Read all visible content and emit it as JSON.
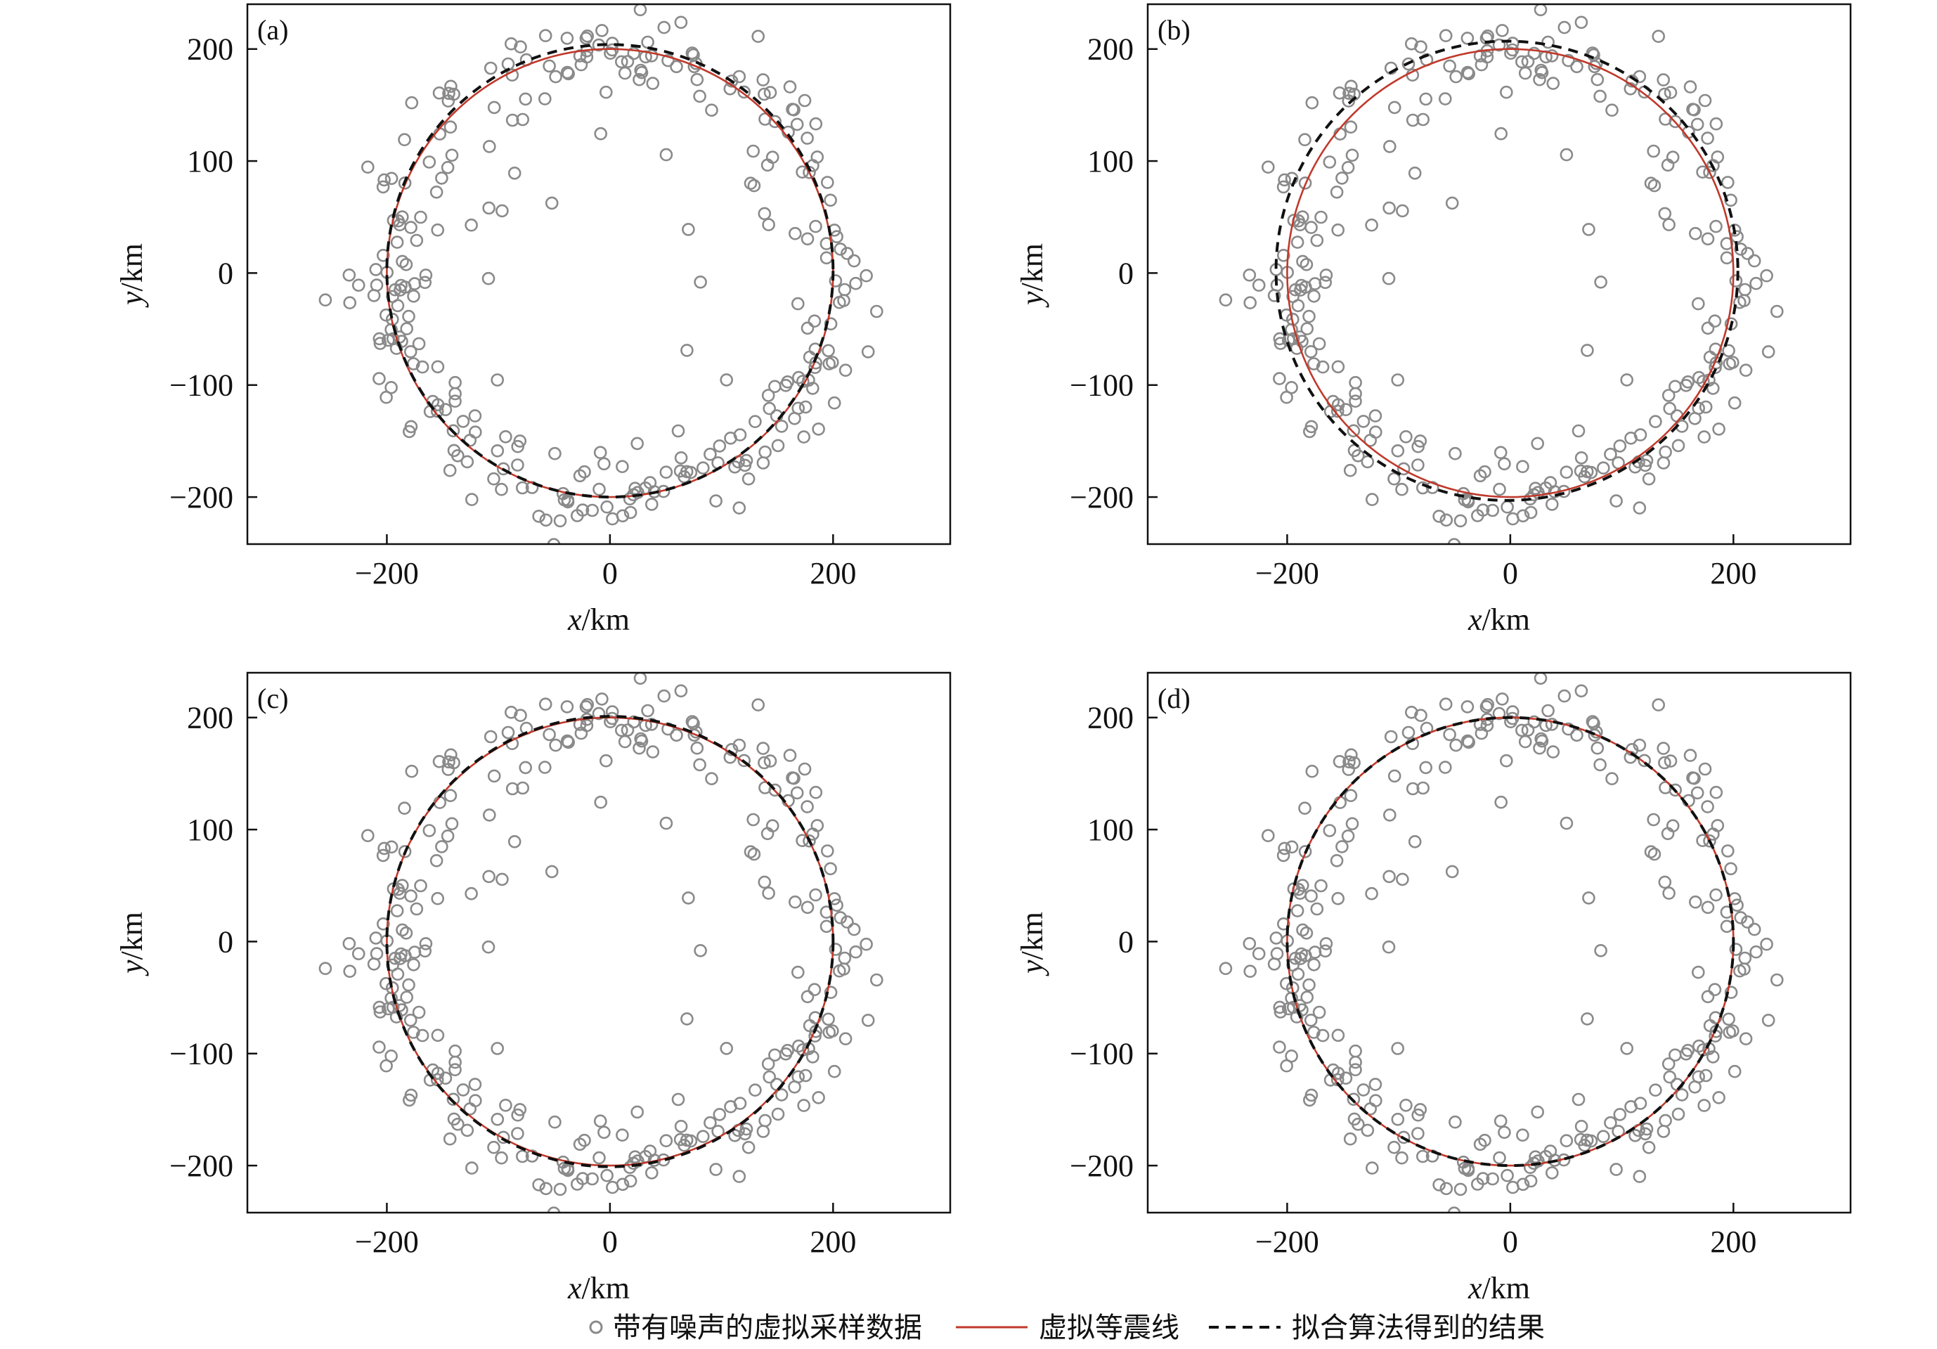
{
  "colors": {
    "samples": "#8a8a8a",
    "true_curve": "#c0392b",
    "fit_curve": "#111111",
    "axes": "#111111"
  },
  "legend": {
    "samples": "带有噪声的虚拟采样数据",
    "true_curve": "虚拟等震线",
    "fit_curve": "拟合算法得到的结果"
  },
  "chart_data": [
    {
      "panel": "(a)",
      "type": "scatter",
      "xlabel": "x/km",
      "ylabel": "y/km",
      "xlim": [
        -325,
        305
      ],
      "ylim": [
        -242,
        240
      ],
      "xticks": [
        -200,
        0,
        200
      ],
      "yticks": [
        -200,
        -100,
        0,
        100,
        200
      ],
      "true_radius": 200,
      "fit": {
        "cx": 0,
        "cy": 2,
        "a": 200,
        "b": 202
      },
      "series": [
        {
          "name": "带有噪声的虚拟采样数据",
          "kind": "scatter"
        },
        {
          "name": "虚拟等震线",
          "kind": "line"
        },
        {
          "name": "拟合算法得到的结果",
          "kind": "dashed-line"
        }
      ]
    },
    {
      "panel": "(b)",
      "type": "scatter",
      "xlabel": "x/km",
      "ylabel": "y/km",
      "xlim": [
        -325,
        305
      ],
      "ylim": [
        -242,
        240
      ],
      "xticks": [
        -200,
        0,
        200
      ],
      "yticks": [
        -200,
        -100,
        0,
        100,
        200
      ],
      "true_radius": 200,
      "fit": {
        "cx": -3,
        "cy": 2,
        "a": 207,
        "b": 205
      },
      "series": [
        {
          "name": "带有噪声的虚拟采样数据",
          "kind": "scatter"
        },
        {
          "name": "虚拟等震线",
          "kind": "line"
        },
        {
          "name": "拟合算法得到的结果",
          "kind": "dashed-line"
        }
      ]
    },
    {
      "panel": "(c)",
      "type": "scatter",
      "xlabel": "x/km",
      "ylabel": "y/km",
      "xlim": [
        -325,
        305
      ],
      "ylim": [
        -242,
        240
      ],
      "xticks": [
        -200,
        0,
        200
      ],
      "yticks": [
        -200,
        -100,
        0,
        100,
        200
      ],
      "true_radius": 200,
      "fit": {
        "cx": 0,
        "cy": 0,
        "a": 200,
        "b": 201
      },
      "series": [
        {
          "name": "带有噪声的虚拟采样数据",
          "kind": "scatter"
        },
        {
          "name": "虚拟等震线",
          "kind": "line"
        },
        {
          "name": "拟合算法得到的结果",
          "kind": "dashed-line"
        }
      ]
    },
    {
      "panel": "(d)",
      "type": "scatter",
      "xlabel": "x/km",
      "ylabel": "y/km",
      "xlim": [
        -325,
        305
      ],
      "ylim": [
        -242,
        240
      ],
      "xticks": [
        -200,
        0,
        200
      ],
      "yticks": [
        -200,
        -100,
        0,
        100,
        200
      ],
      "true_radius": 200,
      "fit": {
        "cx": 0,
        "cy": 0,
        "a": 200,
        "b": 200
      },
      "series": [
        {
          "name": "带有噪声的虚拟采样数据",
          "kind": "scatter"
        },
        {
          "name": "虚拟等震线",
          "kind": "line"
        },
        {
          "name": "拟合算法得到的结果",
          "kind": "dashed-line"
        }
      ]
    }
  ]
}
